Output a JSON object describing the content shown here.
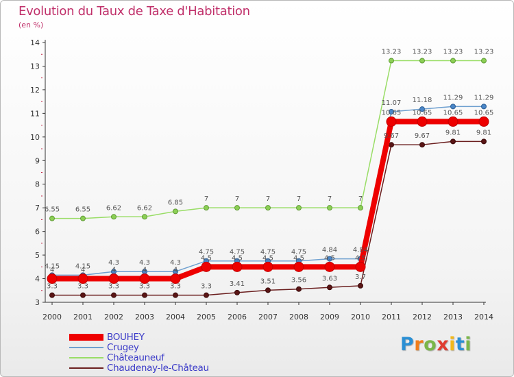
{
  "title": "Evolution du Taux de Taxe d'Habitation",
  "subtitle": "(en %)",
  "logo": {
    "text": "Proxiti",
    "letters": [
      "P",
      "r",
      "o",
      "x",
      "i",
      "t",
      "i"
    ],
    "colors": [
      "#2a8fd4",
      "#f07d1a",
      "#7ab648",
      "#e03c31",
      "#f2b81a",
      "#2a8fd4",
      "#7ab648"
    ]
  },
  "chart_data": {
    "type": "line",
    "title": "Evolution du Taux de Taxe d'Habitation",
    "ylabel": "(en %)",
    "xlabel": "",
    "x": [
      "2000",
      "2001",
      "2002",
      "2003",
      "2004",
      "2005",
      "2006",
      "2007",
      "2008",
      "2009",
      "2010",
      "2011",
      "2012",
      "2013",
      "2014"
    ],
    "ylim": [
      3,
      14
    ],
    "yticks": [
      "3",
      "4",
      "5",
      "6",
      "7",
      "8",
      "9",
      "10",
      "11",
      "12",
      "13",
      "14"
    ],
    "grid": false,
    "legend_position": "bottom-left",
    "series": [
      {
        "name": "Châteauneuf",
        "color": "#99dd66",
        "values": [
          6.55,
          6.55,
          6.62,
          6.62,
          6.85,
          7,
          7,
          7,
          7,
          7,
          7,
          13.23,
          13.23,
          13.23,
          13.23
        ],
        "labels": [
          "6.55",
          "6.55",
          "6.62",
          "6.62",
          "6.85",
          "7",
          "7",
          "7",
          "7",
          "7",
          "7",
          "13.23",
          "13.23",
          "13.23",
          "13.23"
        ]
      },
      {
        "name": "Crugey",
        "color": "#6fa0d0",
        "values": [
          4.15,
          4.15,
          4.3,
          4.3,
          4.3,
          4.75,
          4.75,
          4.75,
          4.75,
          4.84,
          4.84,
          11.07,
          11.18,
          11.29,
          11.29
        ],
        "labels": [
          "4.15",
          "4.15",
          "4.3",
          "4.3",
          "4.3",
          "4.75",
          "4.75",
          "4.75",
          "4.75",
          "4.84",
          "4.84",
          "11.07",
          "11.18",
          "11.29",
          "11.29"
        ]
      },
      {
        "name": "Chaudenay-le-Château",
        "color": "#6b1f1f",
        "values": [
          3.3,
          3.3,
          3.3,
          3.3,
          3.3,
          3.3,
          3.41,
          3.51,
          3.56,
          3.63,
          3.7,
          9.67,
          9.67,
          9.81,
          9.81
        ],
        "labels": [
          "3.3",
          "3.3",
          "3.3",
          "3.3",
          "3.3",
          "3.3",
          "3.41",
          "3.51",
          "3.56",
          "3.63",
          "3.7",
          "9.67",
          "9.67",
          "9.81",
          "9.81"
        ]
      },
      {
        "name": "BOUHEY",
        "color": "#ee0000",
        "values": [
          4,
          4,
          4,
          4,
          4,
          4.5,
          4.5,
          4.5,
          4.5,
          4.5,
          4.5,
          10.65,
          10.65,
          10.65,
          10.65
        ],
        "labels": [
          "4",
          "4",
          "4",
          "4",
          "4",
          "4.5",
          "4.5",
          "4.5",
          "4.5",
          "4.5",
          "4.5",
          "10.65",
          "10.65",
          "10.65",
          "10.65"
        ]
      }
    ],
    "legend": [
      "BOUHEY",
      "Crugey",
      "Châteauneuf",
      "Chaudenay-le-Château"
    ]
  }
}
